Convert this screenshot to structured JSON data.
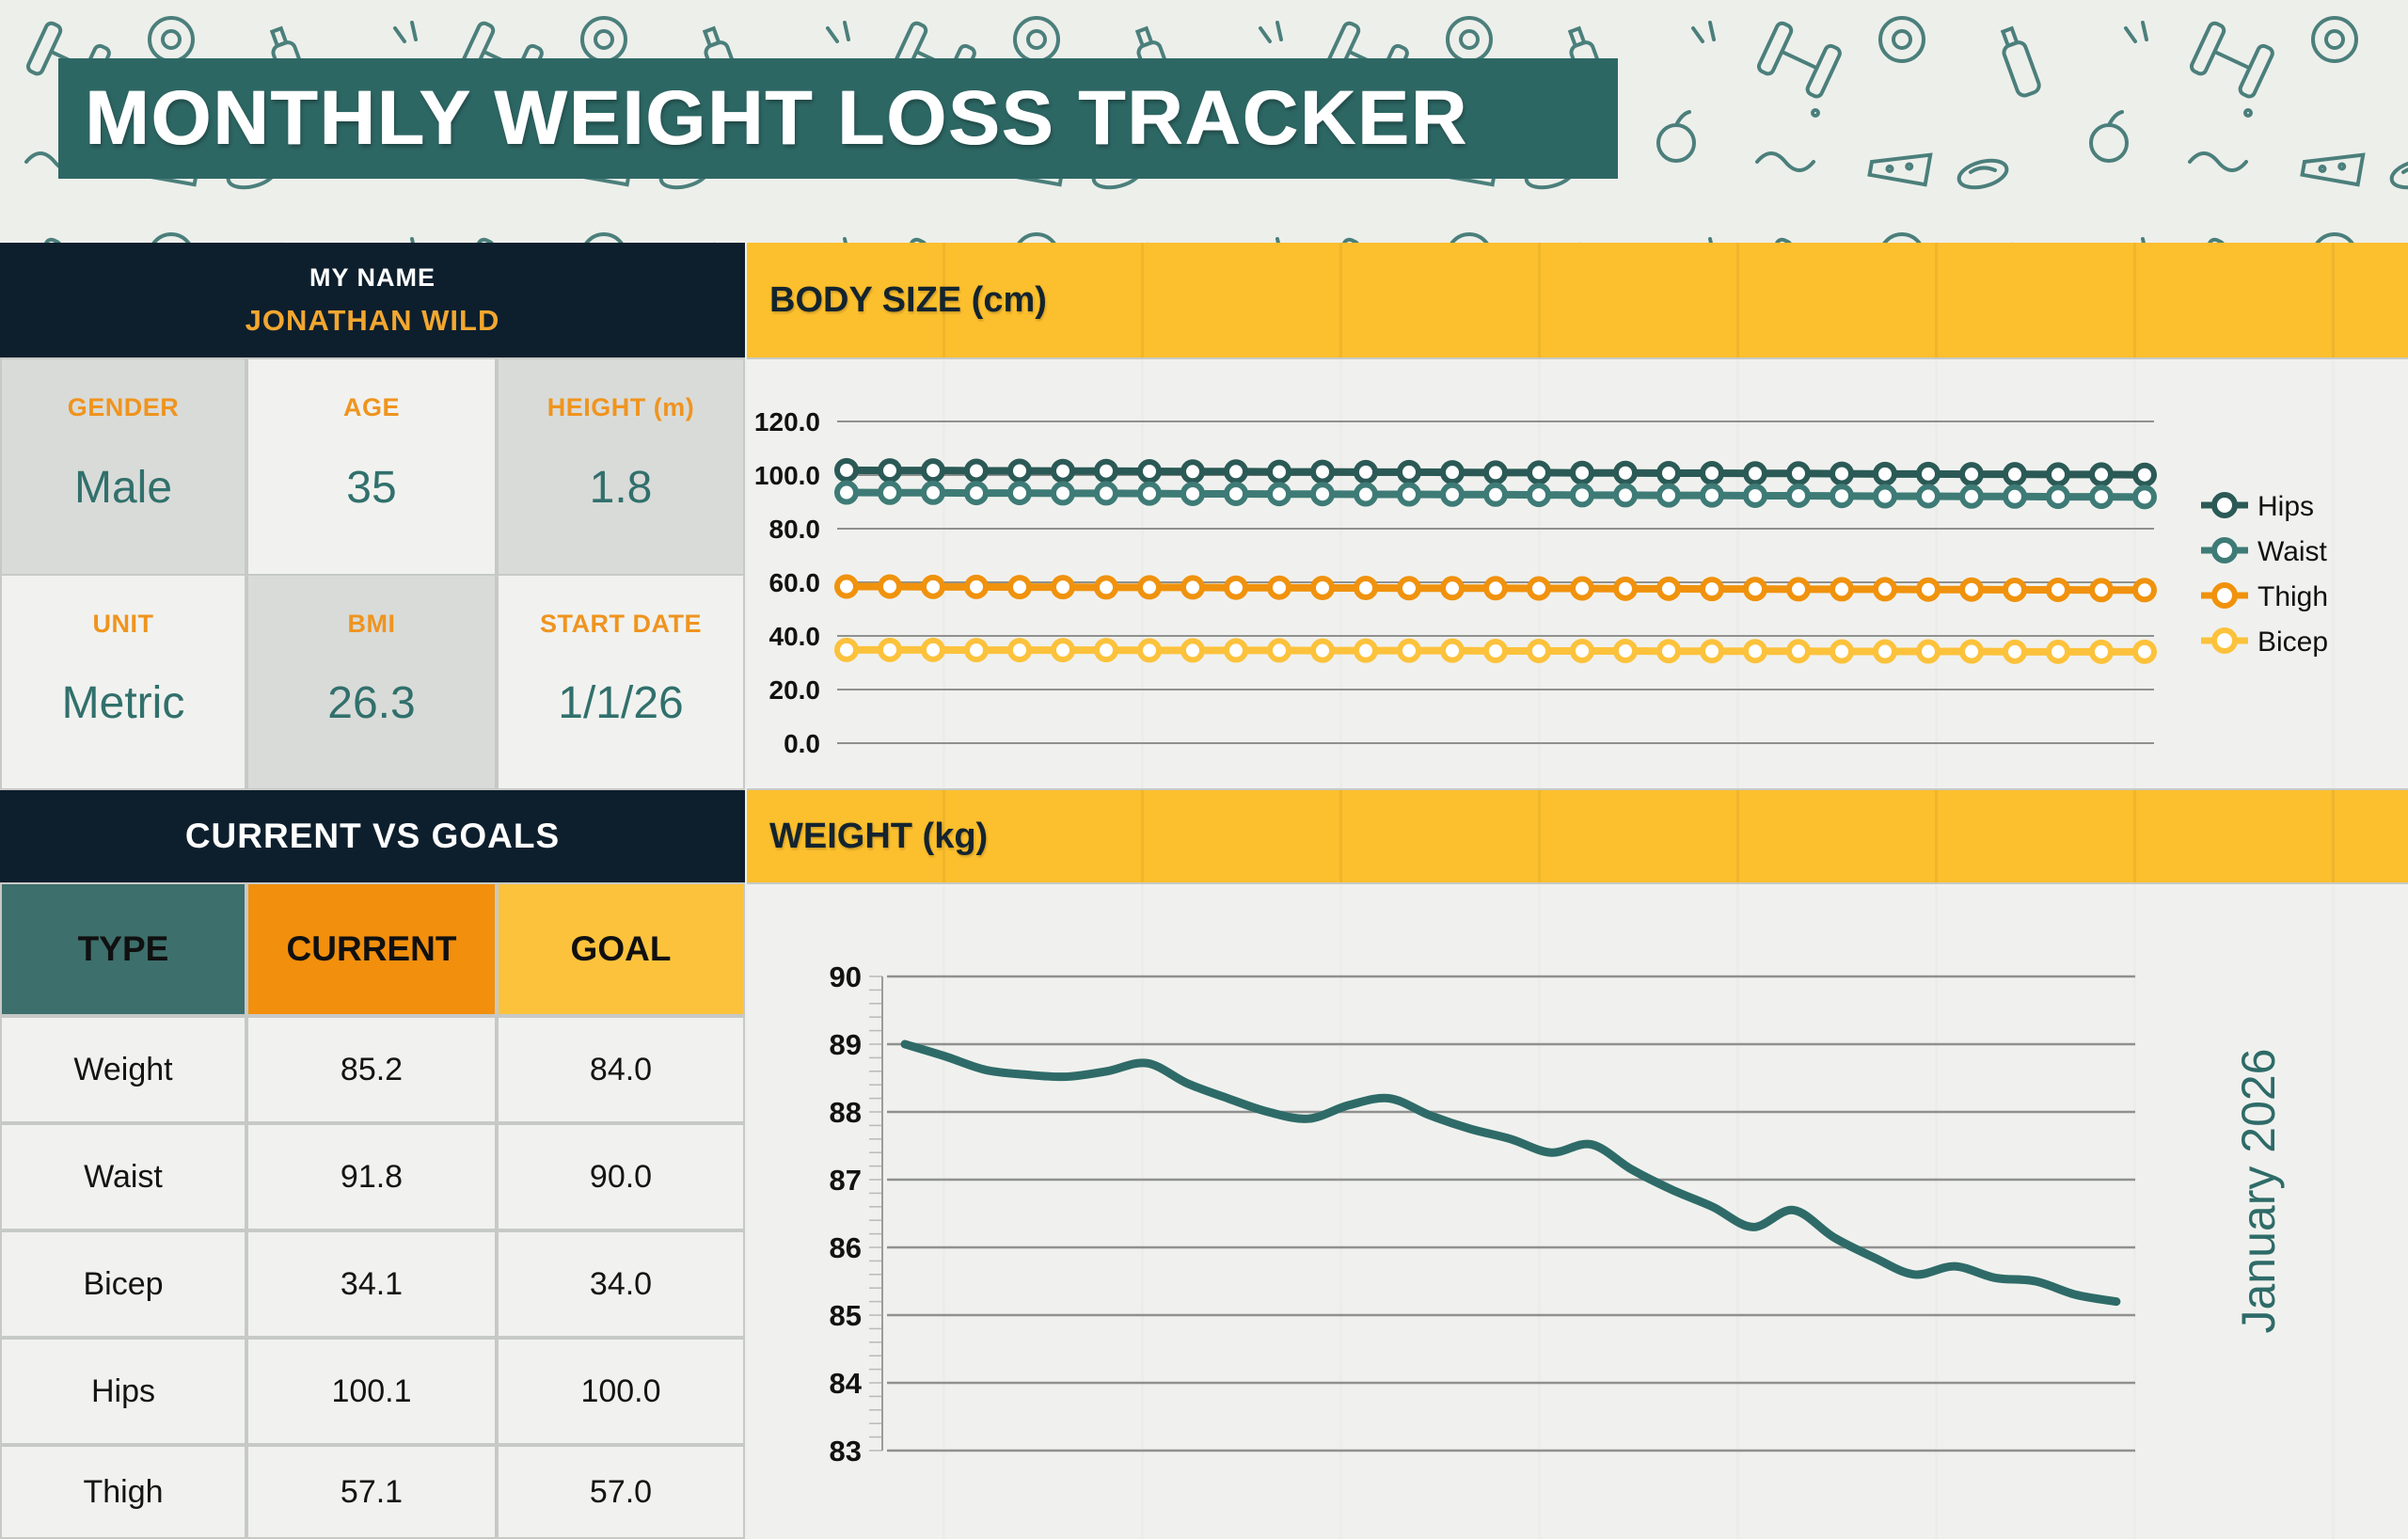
{
  "title": "MONTHLY WEIGHT LOSS TRACKER",
  "profile": {
    "name_label": "MY NAME",
    "name_value": "JONATHAN WILD",
    "fields": [
      {
        "label": "GENDER",
        "value": "Male"
      },
      {
        "label": "AGE",
        "value": "35"
      },
      {
        "label": "HEIGHT (m)",
        "value": "1.8"
      },
      {
        "label": "UNIT",
        "value": "Metric"
      },
      {
        "label": "BMI",
        "value": "26.3"
      },
      {
        "label": "START DATE",
        "value": "1/1/26"
      }
    ]
  },
  "goals": {
    "header": "CURRENT VS GOALS",
    "columns": [
      "TYPE",
      "CURRENT",
      "GOAL"
    ],
    "rows": [
      {
        "type": "Weight",
        "current": "85.2",
        "goal": "84.0"
      },
      {
        "type": "Waist",
        "current": "91.8",
        "goal": "90.0"
      },
      {
        "type": "Bicep",
        "current": "34.1",
        "goal": "34.0"
      },
      {
        "type": "Hips",
        "current": "100.1",
        "goal": "100.0"
      },
      {
        "type": "Thigh",
        "current": "57.1",
        "goal": "57.0"
      }
    ]
  },
  "charts": {
    "body_size": {
      "title": "BODY SIZE (cm)"
    },
    "weight": {
      "title": "WEIGHT (kg)",
      "right_axis_label": "January 2026"
    }
  },
  "colors": {
    "brand_teal": "#2d6764",
    "navy": "#0d1f2d",
    "header_yellow": "#fcbf2d",
    "header_orange": "#f28f0c",
    "header_teal": "#3d6f6c",
    "label_orange": "#ef941f",
    "value_teal": "#31706c",
    "gridline": "#8f918f"
  },
  "chart_data": [
    {
      "id": "body_size",
      "type": "line",
      "title": "BODY SIZE (cm)",
      "xlabel": "",
      "ylabel": "",
      "ylim": [
        0,
        120
      ],
      "y_ticks": [
        "120.0",
        "100.0",
        "80.0",
        "60.0",
        "40.0",
        "20.0",
        "0.0"
      ],
      "grid": true,
      "legend_position": "right",
      "x_axis_labels_visible": false,
      "markers": true,
      "x": [
        1,
        2,
        3,
        4,
        5,
        6,
        7,
        8,
        9,
        10,
        11,
        12,
        13,
        14,
        15,
        16,
        17,
        18,
        19,
        20,
        21,
        22,
        23,
        24,
        25,
        26,
        27,
        28,
        29,
        30,
        31
      ],
      "series": [
        {
          "name": "Hips",
          "color": "#2b5a56",
          "values": [
            101.8,
            101.7,
            101.7,
            101.6,
            101.6,
            101.5,
            101.5,
            101.4,
            101.3,
            101.3,
            101.2,
            101.2,
            101.1,
            101.1,
            101.0,
            100.9,
            100.9,
            100.8,
            100.8,
            100.7,
            100.7,
            100.6,
            100.6,
            100.5,
            100.4,
            100.4,
            100.3,
            100.3,
            100.2,
            100.2,
            100.1
          ]
        },
        {
          "name": "Waist",
          "color": "#3e7b76",
          "values": [
            93.5,
            93.4,
            93.4,
            93.3,
            93.3,
            93.2,
            93.2,
            93.1,
            93.0,
            93.0,
            92.9,
            92.9,
            92.8,
            92.8,
            92.7,
            92.7,
            92.6,
            92.5,
            92.5,
            92.4,
            92.4,
            92.3,
            92.3,
            92.2,
            92.1,
            92.1,
            92.0,
            92.0,
            91.9,
            91.9,
            91.8
          ]
        },
        {
          "name": "Thigh",
          "color": "#f0920d",
          "values": [
            58.4,
            58.4,
            58.3,
            58.3,
            58.2,
            58.2,
            58.1,
            58.1,
            58.1,
            58.0,
            58.0,
            57.9,
            57.9,
            57.8,
            57.8,
            57.8,
            57.7,
            57.7,
            57.6,
            57.6,
            57.5,
            57.5,
            57.4,
            57.4,
            57.4,
            57.3,
            57.3,
            57.2,
            57.2,
            57.1,
            57.1
          ]
        },
        {
          "name": "Bicep",
          "color": "#fcc23c",
          "values": [
            34.8,
            34.8,
            34.8,
            34.7,
            34.7,
            34.7,
            34.7,
            34.6,
            34.6,
            34.6,
            34.6,
            34.5,
            34.5,
            34.5,
            34.5,
            34.4,
            34.4,
            34.4,
            34.4,
            34.3,
            34.3,
            34.3,
            34.3,
            34.2,
            34.2,
            34.2,
            34.2,
            34.1,
            34.1,
            34.1,
            34.1
          ]
        }
      ]
    },
    {
      "id": "weight",
      "type": "line",
      "title": "WEIGHT (kg)",
      "xlabel": "",
      "ylabel": "",
      "ylim": [
        83,
        90
      ],
      "y_ticks": [
        "90",
        "89",
        "88",
        "87",
        "86",
        "85",
        "84",
        "83"
      ],
      "grid": true,
      "legend_position": "none",
      "x_axis_labels_visible": false,
      "right_axis_label": "January 2026",
      "markers": false,
      "smooth": true,
      "x": [
        1,
        2,
        3,
        4,
        5,
        6,
        7,
        8,
        9,
        10,
        11,
        12,
        13,
        14,
        15,
        16,
        17,
        18,
        19,
        20,
        21,
        22,
        23,
        24,
        25,
        26,
        27,
        28,
        29,
        30,
        31
      ],
      "series": [
        {
          "name": "Weight",
          "color": "#2e6b68",
          "values": [
            89.0,
            88.82,
            88.62,
            88.55,
            88.52,
            88.6,
            88.72,
            88.42,
            88.2,
            88.0,
            87.9,
            88.1,
            88.2,
            87.95,
            87.75,
            87.6,
            87.4,
            87.52,
            87.15,
            86.85,
            86.6,
            86.3,
            86.55,
            86.15,
            85.85,
            85.6,
            85.72,
            85.55,
            85.5,
            85.3,
            85.2
          ]
        }
      ]
    }
  ]
}
